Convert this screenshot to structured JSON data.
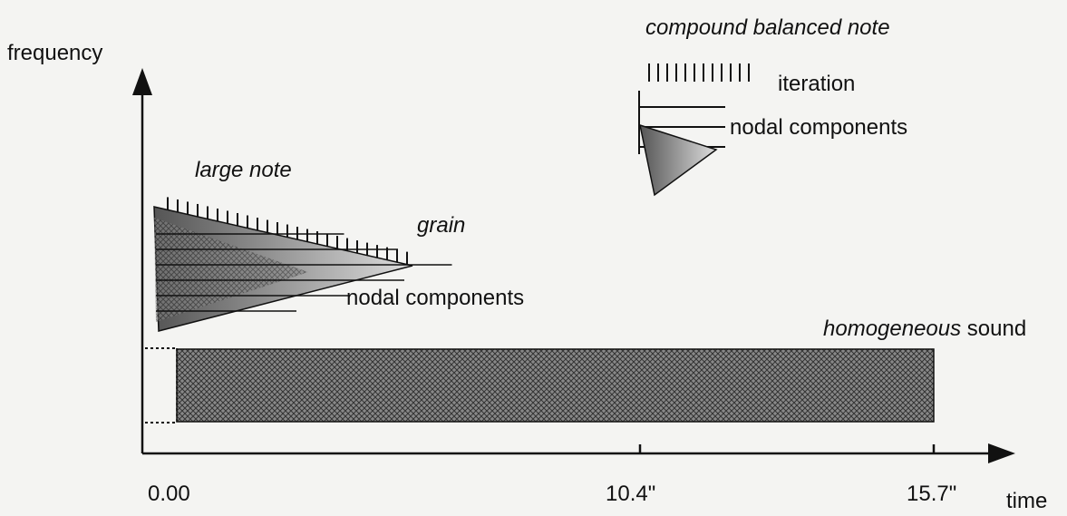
{
  "axes": {
    "y_label": "frequency",
    "x_label": "time",
    "x_ticks": [
      "0.00",
      "10.4\"",
      "15.7\""
    ]
  },
  "large_note": {
    "title": "large note",
    "grain": "grain",
    "nodal": "nodal components"
  },
  "homogeneous": {
    "italic": "homogeneous",
    "rest": "sound"
  },
  "compound": {
    "title": "compound balanced note",
    "iteration": "iteration",
    "nodal": "nodal components"
  }
}
